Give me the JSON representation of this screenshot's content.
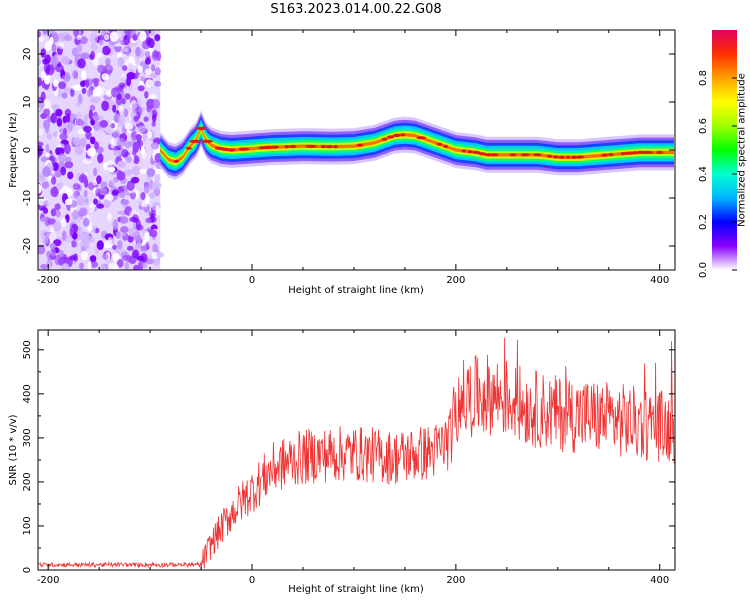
{
  "title": "S163.2023.014.00.22.G08",
  "chart_data": [
    {
      "type": "heatmap",
      "title": "S163.2023.014.00.22.G08",
      "xlabel": "Height of straight line (km)",
      "ylabel": "Frequency (Hz)",
      "xlim": [
        -210,
        415
      ],
      "ylim": [
        -25,
        25
      ],
      "xticks": [
        -200,
        0,
        200,
        400
      ],
      "yticks": [
        -20,
        -10,
        0,
        10,
        20
      ],
      "noise_region_x": [
        -210,
        -90
      ],
      "ridge": {
        "x": [
          -90,
          -82,
          -75,
          -68,
          -60,
          -55,
          -50,
          -45,
          -40,
          -30,
          -20,
          0,
          20,
          50,
          80,
          100,
          120,
          140,
          150,
          160,
          180,
          200,
          220,
          230,
          260,
          280,
          300,
          320,
          350,
          380,
          415
        ],
        "freq": [
          0,
          -2,
          -2.5,
          -1.5,
          1,
          2,
          4.5,
          2,
          1,
          0.2,
          0,
          0.3,
          0.6,
          0.8,
          0.7,
          0.8,
          1.5,
          3,
          3.2,
          3,
          1.5,
          0,
          -0.5,
          -1,
          -1,
          -1,
          -1.5,
          -1.5,
          -1,
          -0.5,
          -0.5
        ]
      },
      "colorbar": {
        "label": "Normalized spectral amplitude",
        "range": [
          0,
          1
        ],
        "ticks": [
          "0.0",
          "0.2",
          "0.4",
          "0.6",
          "0.8"
        ],
        "tick_values": [
          0,
          0.2,
          0.4,
          0.6,
          0.8
        ],
        "colors": [
          "#ffffff",
          "#8a00ff",
          "#0000ff",
          "#00b4ff",
          "#00ffd0",
          "#00ff00",
          "#a0ff00",
          "#ffff00",
          "#ffa000",
          "#ff3000",
          "#e00060"
        ]
      }
    },
    {
      "type": "line",
      "xlabel": "Height of straight line (km)",
      "ylabel": "SNR (10 * v/v)",
      "xlim": [
        -210,
        415
      ],
      "ylim": [
        0,
        545
      ],
      "xticks": [
        -200,
        0,
        200,
        400
      ],
      "yticks": [
        0,
        100,
        200,
        300,
        400,
        500
      ],
      "color": "#ee3333",
      "series": [
        {
          "name": "SNR",
          "x": [
            -210,
            -50,
            -40,
            -20,
            0,
            20,
            40,
            60,
            100,
            140,
            180,
            195,
            200,
            210,
            230,
            250,
            270,
            300,
            330,
            360,
            390,
            415
          ],
          "y": [
            12,
            12,
            60,
            130,
            180,
            230,
            250,
            260,
            265,
            255,
            270,
            300,
            380,
            390,
            400,
            390,
            370,
            355,
            350,
            340,
            330,
            325
          ]
        }
      ]
    }
  ]
}
